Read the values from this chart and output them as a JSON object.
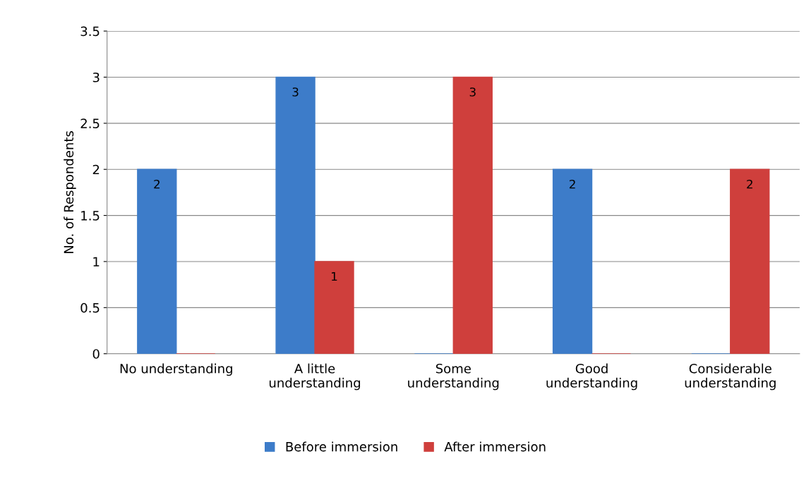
{
  "chart_data": {
    "type": "bar",
    "ylabel": "No. of Respondents",
    "categories": [
      "No understanding",
      "A little\nunderstanding",
      "Some\nunderstanding",
      "Good\nunderstanding",
      "Considerable\nunderstanding"
    ],
    "series": [
      {
        "name": "Before immersion",
        "color": "#3d7cc9",
        "values": [
          2,
          3,
          0,
          2,
          0
        ],
        "value_labels": [
          "2",
          "3",
          null,
          "2",
          null
        ]
      },
      {
        "name": "After immersion",
        "color": "#cf3f3c",
        "values": [
          0,
          1,
          3,
          0,
          2
        ],
        "value_labels": [
          null,
          "1",
          "3",
          null,
          "2"
        ]
      }
    ],
    "ylim": [
      0,
      3.5
    ],
    "yticks": [
      0,
      0.5,
      1,
      1.5,
      2,
      2.5,
      3,
      3.5
    ],
    "grid": "y",
    "legend": "bottom"
  }
}
